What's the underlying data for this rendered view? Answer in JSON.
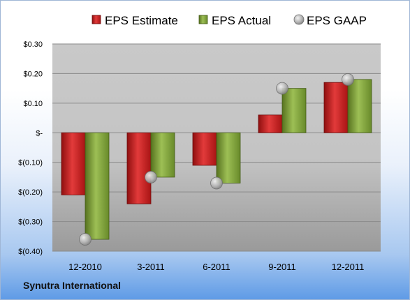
{
  "chart_data": {
    "type": "bar",
    "categories": [
      "12-2010",
      "3-2011",
      "6-2011",
      "9-2011",
      "12-2011"
    ],
    "series": [
      {
        "name": "EPS Estimate",
        "kind": "bar",
        "color": "#cc1f1f",
        "values": [
          -0.21,
          -0.24,
          -0.11,
          0.06,
          0.17
        ]
      },
      {
        "name": "EPS Actual",
        "kind": "bar",
        "color": "#7e9f3a",
        "values": [
          -0.36,
          -0.15,
          -0.17,
          0.15,
          0.18
        ]
      },
      {
        "name": "EPS GAAP",
        "kind": "marker",
        "color": "#a9a9a9",
        "values": [
          -0.36,
          -0.15,
          -0.17,
          0.15,
          0.18
        ]
      }
    ],
    "ylim": [
      -0.4,
      0.3
    ],
    "yticks": [
      0.3,
      0.2,
      0.1,
      0,
      -0.1,
      -0.2,
      -0.3,
      -0.4
    ],
    "ytick_labels": [
      "$0.30",
      "$0.20",
      "$0.10",
      "$-",
      "$(0.10)",
      "$(0.20)",
      "$(0.30)",
      "$(0.40)"
    ],
    "grid": true,
    "legend_position": "top"
  },
  "footer": {
    "company": "Synutra International"
  }
}
